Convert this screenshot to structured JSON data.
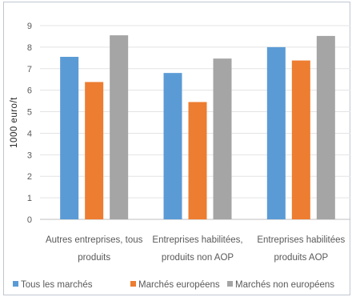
{
  "chart_data": {
    "type": "bar",
    "title": "",
    "xlabel": "",
    "ylabel": "1000 euro/t",
    "ylim": [
      0,
      9
    ],
    "yticks": [
      0,
      1,
      2,
      3,
      4,
      5,
      6,
      7,
      8,
      9
    ],
    "grid": true,
    "legend_position": "bottom",
    "categories": [
      [
        "Autres entreprises, tous",
        "produits"
      ],
      [
        "Entreprises habilitées,",
        "produits non AOP"
      ],
      [
        "Entreprises habilitées",
        "produits AOP"
      ]
    ],
    "series": [
      {
        "name": "Tous les marchés",
        "color": "#5b9bd5",
        "values": [
          7.55,
          6.8,
          8.0
        ]
      },
      {
        "name": "Marchés européens",
        "color": "#ed7d31",
        "values": [
          6.38,
          5.45,
          7.38
        ]
      },
      {
        "name": "Marchés non européens",
        "color": "#a5a5a5",
        "values": [
          8.55,
          7.47,
          8.52
        ]
      }
    ]
  }
}
